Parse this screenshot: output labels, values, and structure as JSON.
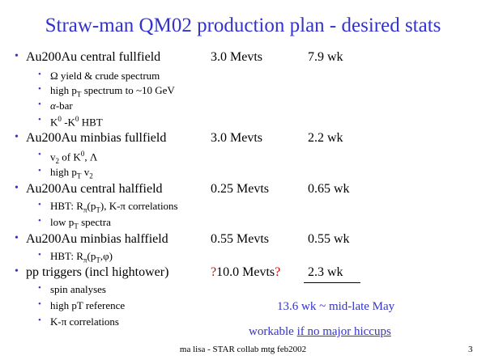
{
  "title": "Straw-man QM02 production plan - desired stats",
  "bullet_glyph": "•",
  "rows": [
    {
      "label": "Au200Au central fullfield",
      "mevts": "3.0 Mevts",
      "wk": "7.9 wk"
    },
    {
      "label": "Au200Au minbias fullfield",
      "mevts": "3.0 Mevts",
      "wk": "2.2 wk"
    },
    {
      "label": "Au200Au central halffield",
      "mevts": "0.25 Mevts",
      "wk": "0.65 wk"
    },
    {
      "label": "Au200Au minbias halffield",
      "mevts": "0.55 Mevts",
      "wk": "0.55 wk"
    },
    {
      "label": "pp triggers (incl hightower)",
      "mevts_q1": "?",
      "mevts": "10.0 Mevts",
      "mevts_q2": "?",
      "wk": "2.3 wk"
    }
  ],
  "sub": {
    "omega_sym": "Ω",
    "omega_rest": " yield & crude spectrum",
    "highpt_a": "high p",
    "highpt_sub": "T",
    "highpt_b": " spectrum to ~10 GeV",
    "alpha_sym": "α",
    "alpha_rest": "-bar",
    "k0_a": "K",
    "k0_sup": "0",
    "k0_b": " -K",
    "k0_sup2": "0",
    "k0_c": " HBT",
    "v2_a": "v",
    "v2_sub": "2",
    "v2_b": "  of K",
    "v2_sup": "0",
    "v2_c": ", Λ",
    "hpv2_a": "high p",
    "hpv2_sub": "T",
    "hpv2_b": " v",
    "hpv2_sub2": "2",
    "hbt1_a": "HBT: R",
    "hbt1_sub": "π",
    "hbt1_b": "(p",
    "hbt1_sub2": "T",
    "hbt1_c": "), K-π correlations",
    "lowpt_a": "low p",
    "lowpt_sub": "T",
    "lowpt_b": " spectra",
    "hbt2_a": "HBT: R",
    "hbt2_sub": "π",
    "hbt2_b": "(p",
    "hbt2_sub2": "T",
    "hbt2_c": ",φ)",
    "spin": "spin analyses",
    "hptref": "high pT reference",
    "kpi": "K-π correlations"
  },
  "summary_line1": "13.6 wk ~ mid-late May",
  "summary_line2_a": "workable ",
  "summary_line2_b": "if no major hiccups",
  "footer": "ma lisa - STAR collab mtg feb2002",
  "page_number": "3",
  "colors": {
    "accent": "#3333cc",
    "warning": "#cc0000"
  }
}
